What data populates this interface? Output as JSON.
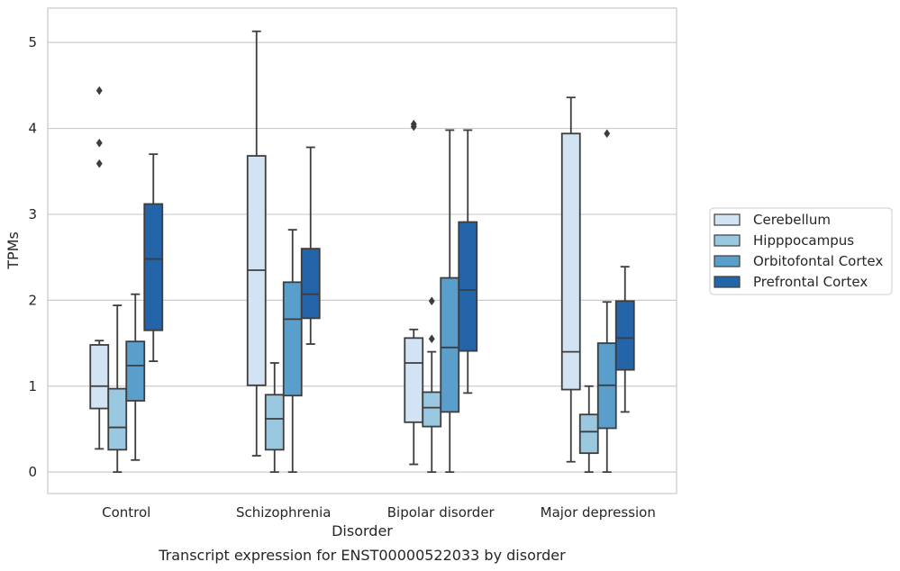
{
  "chart_data": {
    "type": "box",
    "caption": "Transcript expression for ENST00000522033 by disorder",
    "xlabel": "Disorder",
    "ylabel": "TPMs",
    "ylim": [
      -0.25,
      5.4
    ],
    "yticks": [
      0,
      1,
      2,
      3,
      4,
      5
    ],
    "grid": "horizontal",
    "legend_position": "right",
    "categories": [
      "Control",
      "Schizophrenia",
      "Bipolar disorder",
      "Major depression"
    ],
    "series": [
      {
        "name": "Cerebellum",
        "color": "#d2e3f3",
        "boxes": [
          {
            "whislo": 0.27,
            "q1": 0.74,
            "med": 1.0,
            "q3": 1.48,
            "whishi": 1.53,
            "fliers": [
              4.44,
              3.83,
              3.59
            ]
          },
          {
            "whislo": 0.19,
            "q1": 1.01,
            "med": 2.35,
            "q3": 3.68,
            "whishi": 5.13,
            "fliers": []
          },
          {
            "whislo": 0.09,
            "q1": 0.58,
            "med": 1.27,
            "q3": 1.56,
            "whishi": 1.66,
            "fliers": [
              4.05,
              4.02
            ]
          },
          {
            "whislo": 0.12,
            "q1": 0.96,
            "med": 1.4,
            "q3": 3.94,
            "whishi": 4.36,
            "fliers": []
          }
        ]
      },
      {
        "name": "Hipppocampus",
        "color": "#9ac8e0",
        "boxes": [
          {
            "whislo": 0.0,
            "q1": 0.26,
            "med": 0.52,
            "q3": 0.97,
            "whishi": 1.94,
            "fliers": []
          },
          {
            "whislo": 0.0,
            "q1": 0.26,
            "med": 0.62,
            "q3": 0.9,
            "whishi": 1.27,
            "fliers": []
          },
          {
            "whislo": 0.0,
            "q1": 0.53,
            "med": 0.75,
            "q3": 0.93,
            "whishi": 1.4,
            "fliers": [
              1.99,
              1.55
            ]
          },
          {
            "whislo": 0.0,
            "q1": 0.22,
            "med": 0.47,
            "q3": 0.67,
            "whishi": 1.0,
            "fliers": []
          }
        ]
      },
      {
        "name": "Orbitofontal Cortex",
        "color": "#5a9ecc",
        "boxes": [
          {
            "whislo": 0.14,
            "q1": 0.83,
            "med": 1.24,
            "q3": 1.52,
            "whishi": 2.07,
            "fliers": []
          },
          {
            "whislo": 0.0,
            "q1": 0.89,
            "med": 1.78,
            "q3": 2.21,
            "whishi": 2.82,
            "fliers": []
          },
          {
            "whislo": 0.0,
            "q1": 0.7,
            "med": 1.45,
            "q3": 2.26,
            "whishi": 3.98,
            "fliers": []
          },
          {
            "whislo": 0.0,
            "q1": 0.51,
            "med": 1.01,
            "q3": 1.5,
            "whishi": 1.98,
            "fliers": [
              3.94
            ]
          }
        ]
      },
      {
        "name": "Prefrontal Cortex",
        "color": "#2464a8",
        "boxes": [
          {
            "whislo": 1.29,
            "q1": 1.65,
            "med": 2.48,
            "q3": 3.12,
            "whishi": 3.7,
            "fliers": []
          },
          {
            "whislo": 1.49,
            "q1": 1.79,
            "med": 2.07,
            "q3": 2.6,
            "whishi": 3.78,
            "fliers": []
          },
          {
            "whislo": 0.92,
            "q1": 1.41,
            "med": 2.12,
            "q3": 2.91,
            "whishi": 3.98,
            "fliers": []
          },
          {
            "whislo": 0.7,
            "q1": 1.19,
            "med": 1.56,
            "q3": 1.99,
            "whishi": 2.39,
            "fliers": []
          }
        ]
      }
    ]
  }
}
